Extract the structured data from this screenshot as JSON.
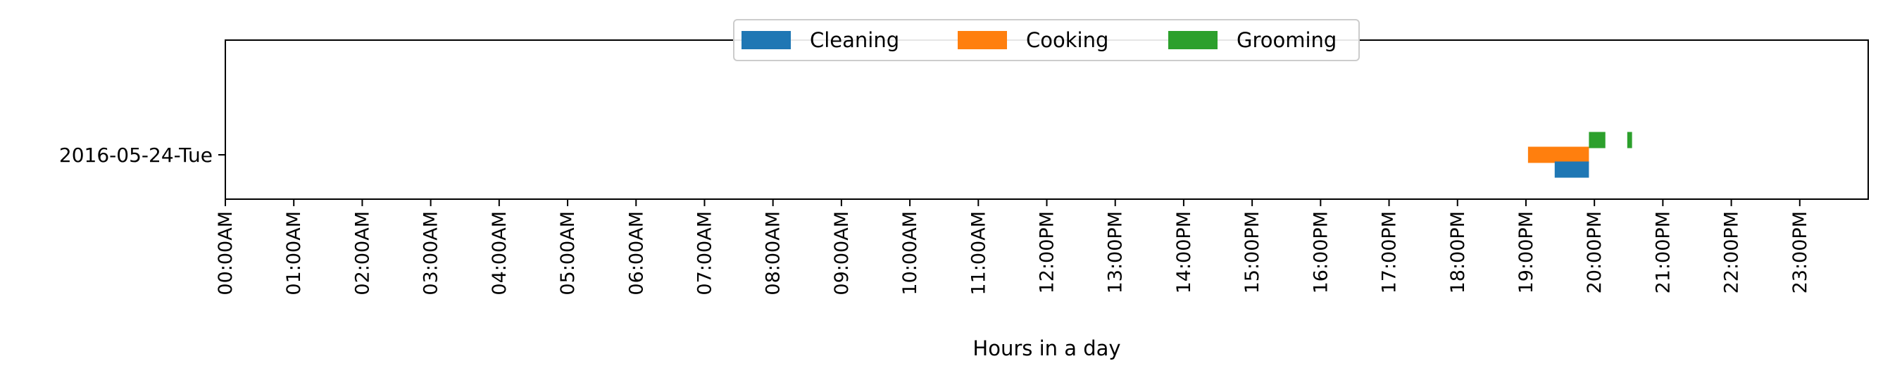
{
  "chart_data": {
    "type": "broken_barh",
    "title": "",
    "xlabel": "Hours in a day",
    "ylabel": "",
    "xlim": [
      0,
      24
    ],
    "x_unit": "hours",
    "x_ticks": [
      {
        "value": 0,
        "label": "00:00AM"
      },
      {
        "value": 1,
        "label": "01:00AM"
      },
      {
        "value": 2,
        "label": "02:00AM"
      },
      {
        "value": 3,
        "label": "03:00AM"
      },
      {
        "value": 4,
        "label": "04:00AM"
      },
      {
        "value": 5,
        "label": "05:00AM"
      },
      {
        "value": 6,
        "label": "06:00AM"
      },
      {
        "value": 7,
        "label": "07:00AM"
      },
      {
        "value": 8,
        "label": "08:00AM"
      },
      {
        "value": 9,
        "label": "09:00AM"
      },
      {
        "value": 10,
        "label": "10:00AM"
      },
      {
        "value": 11,
        "label": "11:00AM"
      },
      {
        "value": 12,
        "label": "12:00PM"
      },
      {
        "value": 13,
        "label": "13:00PM"
      },
      {
        "value": 14,
        "label": "14:00PM"
      },
      {
        "value": 15,
        "label": "15:00PM"
      },
      {
        "value": 16,
        "label": "16:00PM"
      },
      {
        "value": 17,
        "label": "17:00PM"
      },
      {
        "value": 18,
        "label": "18:00PM"
      },
      {
        "value": 19,
        "label": "19:00PM"
      },
      {
        "value": 20,
        "label": "20:00PM"
      },
      {
        "value": 21,
        "label": "21:00PM"
      },
      {
        "value": 22,
        "label": "22:00PM"
      },
      {
        "value": 23,
        "label": "23:00PM"
      }
    ],
    "categories": [
      "2016-05-24-Tue"
    ],
    "legend": {
      "placement": "top-center",
      "ncol": 3
    },
    "series": [
      {
        "name": "Cleaning",
        "color": "#1f77b4",
        "lane": "below",
        "segments": [
          {
            "category": "2016-05-24-Tue",
            "start": 19.42,
            "end": 19.92
          }
        ]
      },
      {
        "name": "Cooking",
        "color": "#ff7f0e",
        "lane": "center",
        "segments": [
          {
            "category": "2016-05-24-Tue",
            "start": 19.03,
            "end": 19.92
          }
        ]
      },
      {
        "name": "Grooming",
        "color": "#2ca02c",
        "lane": "above",
        "segments": [
          {
            "category": "2016-05-24-Tue",
            "start": 19.92,
            "end": 20.16
          },
          {
            "category": "2016-05-24-Tue",
            "start": 20.48,
            "end": 20.55
          }
        ]
      }
    ]
  }
}
